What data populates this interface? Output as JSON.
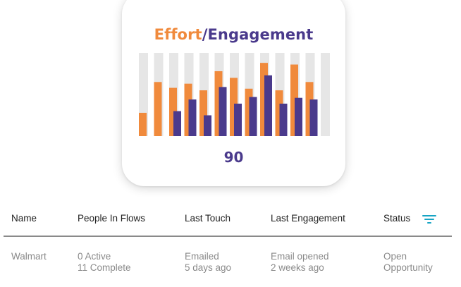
{
  "card": {
    "title_effort": "Effort",
    "title_sep": "/",
    "title_engagement": "Engagement",
    "score": "90"
  },
  "colors": {
    "effort": "#f08a3c",
    "engagement": "#4a3a8c",
    "track": "#e6e6e6",
    "filter_icon": "#17a4c4"
  },
  "chart_data": {
    "type": "bar",
    "series": [
      {
        "name": "Effort",
        "values": [
          0.28,
          0.65,
          0.58,
          0.63,
          0.55,
          0.78,
          0.7,
          0.57,
          0.88,
          0.55,
          0.86,
          0.65
        ]
      },
      {
        "name": "Engagement",
        "values": [
          null,
          null,
          0.3,
          0.44,
          0.25,
          0.59,
          0.39,
          0.47,
          0.73,
          0.39,
          0.46,
          0.44
        ]
      }
    ],
    "ylim": [
      0,
      1
    ],
    "grid": false
  },
  "table": {
    "headers": {
      "name": "Name",
      "people": "People In Flows",
      "last_touch": "Last Touch",
      "last_engagement": "Last Engagement",
      "status": "Status"
    },
    "rows": [
      {
        "name": "Walmart",
        "people_active": "0 Active",
        "people_complete": "11 Complete",
        "touch_1": "Emailed",
        "touch_2": "5 days ago",
        "engagement_1": "Email opened",
        "engagement_2": "2 weeks ago",
        "status_1": "Open",
        "status_2": "Opportunity"
      }
    ]
  },
  "icons": {
    "filter": "filter-icon"
  }
}
